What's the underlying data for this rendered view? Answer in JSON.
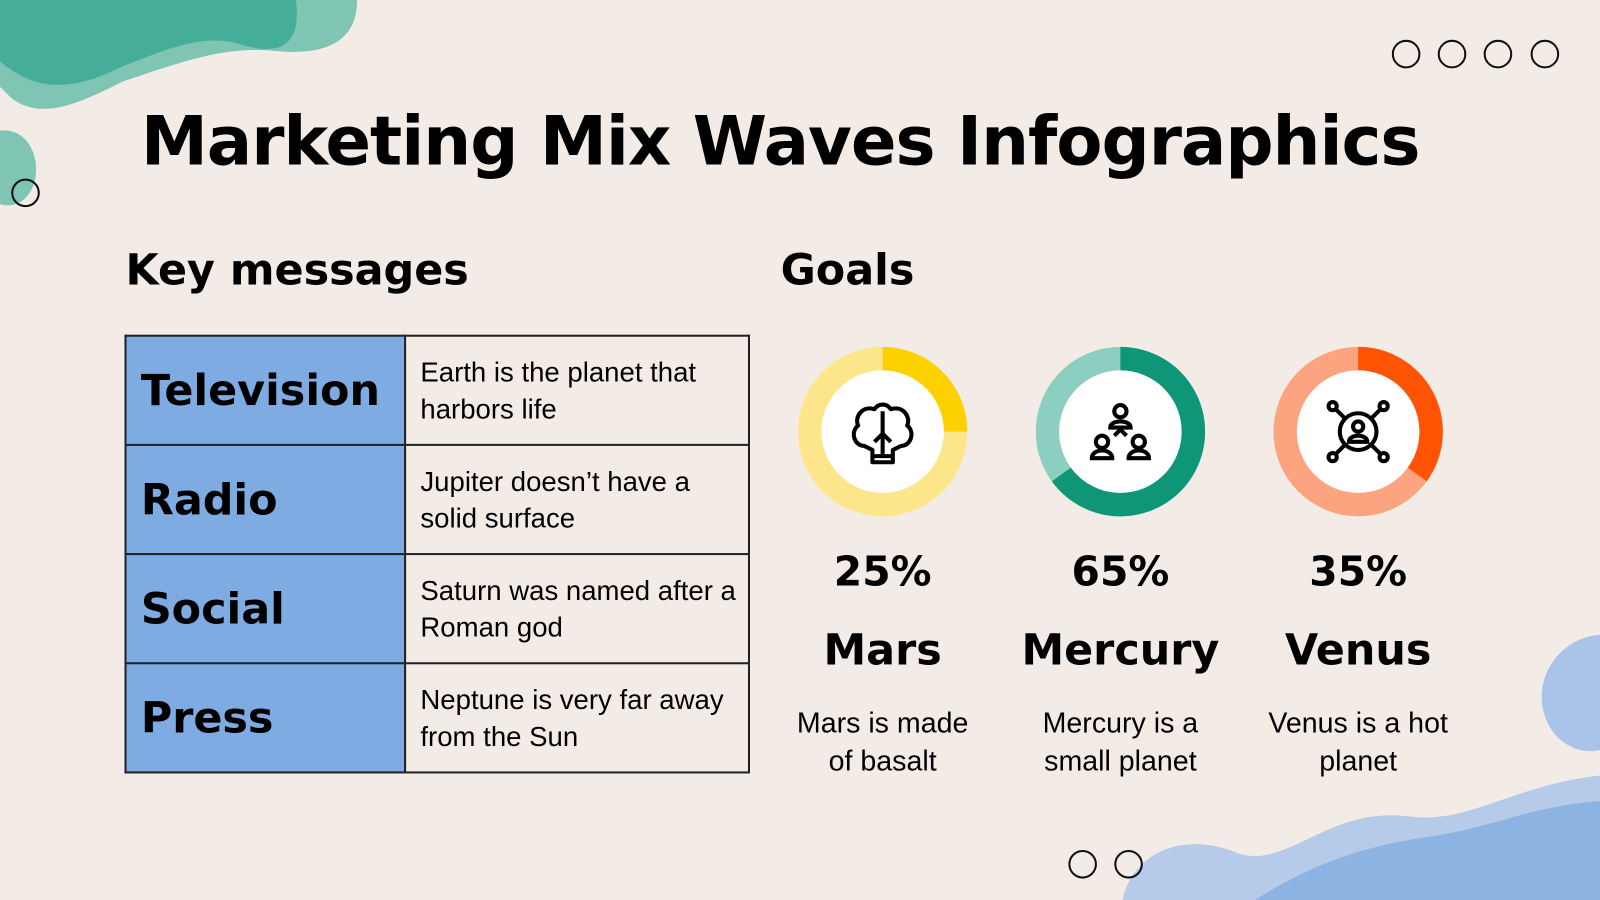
{
  "title": "Marketing Mix Waves Infographics",
  "key_messages": {
    "heading": "Key messages",
    "rows": [
      {
        "channel": "Television",
        "message": "Earth is the planet that harbors life"
      },
      {
        "channel": "Radio",
        "message": "Jupiter doesn’t have a solid surface"
      },
      {
        "channel": "Social",
        "message": "Saturn was named after a Roman god"
      },
      {
        "channel": "Press",
        "message": "Neptune is very far away from the Sun"
      }
    ]
  },
  "goals": {
    "heading": "Goals",
    "items": [
      {
        "percent_label": "25%",
        "percent": 25,
        "name": "Mars",
        "description": "Mars is made of basalt",
        "icon": "brain-bulb-icon",
        "color": "#fdd000",
        "light_color": "#fde68a"
      },
      {
        "percent_label": "65%",
        "percent": 65,
        "name": "Mercury",
        "description": "Mercury is a small planet",
        "icon": "team-hierarchy-icon",
        "color": "#0f9677",
        "light_color": "#8ccfc0"
      },
      {
        "percent_label": "35%",
        "percent": 35,
        "name": "Venus",
        "description": "Venus is a hot planet",
        "icon": "user-network-icon",
        "color": "#ff5404",
        "light_color": "#fca47f"
      }
    ]
  },
  "colors": {
    "background": "#f3ece6",
    "table_key": "#7eabe2",
    "teal": "#46b09a",
    "blue": "#8db3e2"
  }
}
